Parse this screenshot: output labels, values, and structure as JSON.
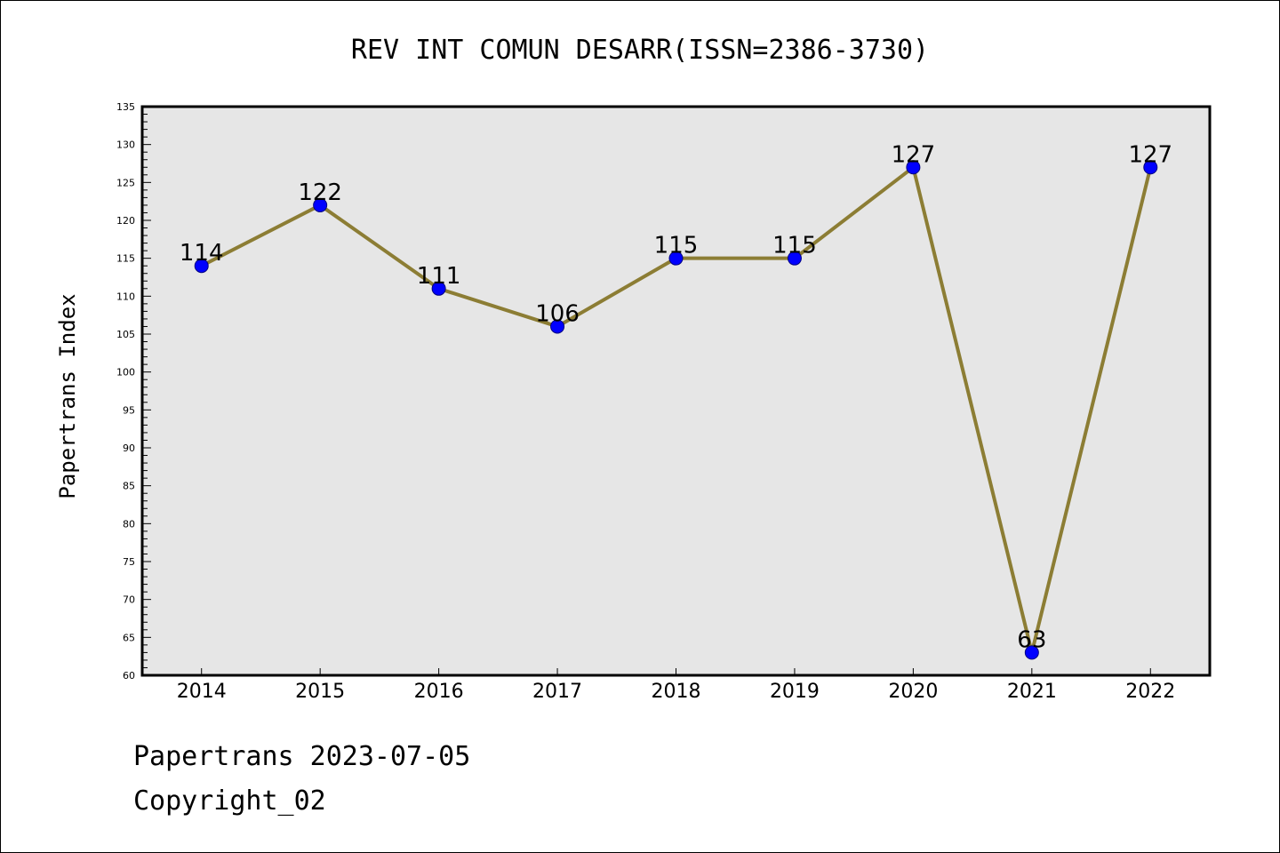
{
  "chart_data": {
    "type": "line",
    "title": "REV INT COMUN DESARR(ISSN=2386-3730)",
    "ylabel": "Papertrans Index",
    "xlabel": "",
    "categories": [
      "2014",
      "2015",
      "2016",
      "2017",
      "2018",
      "2019",
      "2020",
      "2021",
      "2022"
    ],
    "values": [
      114,
      122,
      111,
      106,
      115,
      115,
      127,
      63,
      127
    ],
    "ylim": [
      60,
      135
    ],
    "yticks": [
      60,
      65,
      70,
      75,
      80,
      85,
      90,
      95,
      100,
      105,
      110,
      115,
      120,
      125,
      130,
      135
    ],
    "ytick_minor_step": 1,
    "grid": false,
    "data_labels": true,
    "colors": {
      "plot_background": "#e6e6e6",
      "line": "#8c7d34",
      "marker_fill": "#0000ff",
      "marker_edge": "#000080"
    }
  },
  "footer": {
    "line1": "Papertrans 2023-07-05",
    "line2": "Copyright_02"
  }
}
